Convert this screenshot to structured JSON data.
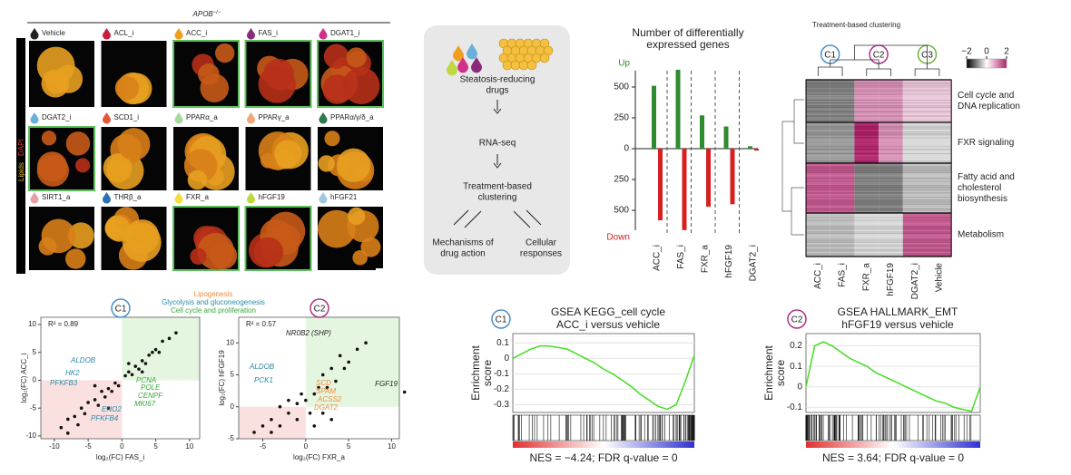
{
  "panel_a": {
    "header": "APOB",
    "header_sup": "−/−",
    "side_label_1": "Lipids",
    "side_label_2": "DAPI",
    "conditions": [
      {
        "label": "Vehicle",
        "color": "#222222",
        "highlighted": false
      },
      {
        "label": "ACL_i",
        "color": "#c8203c",
        "highlighted": false
      },
      {
        "label": "ACC_i",
        "color": "#f0a020",
        "highlighted": true
      },
      {
        "label": "FAS_i",
        "color": "#8a2a7a",
        "highlighted": true
      },
      {
        "label": "DGAT1_i",
        "color": "#d0308a",
        "highlighted": true
      },
      {
        "label": "DGAT2_i",
        "color": "#6ab0d8",
        "highlighted": true
      },
      {
        "label": "SCD1_i",
        "color": "#e05a3a",
        "highlighted": false
      },
      {
        "label": "PPARα_a",
        "color": "#a8d8a0",
        "highlighted": false
      },
      {
        "label": "PPARγ_a",
        "color": "#f0a878",
        "highlighted": false
      },
      {
        "label": "PPARα/γ/δ_a",
        "color": "#2a7a4a",
        "highlighted": false
      },
      {
        "label": "SIRT1_a",
        "color": "#e8a0a8",
        "highlighted": false
      },
      {
        "label": "THRβ_a",
        "color": "#2a70b0",
        "highlighted": false
      },
      {
        "label": "FXR_a",
        "color": "#f0e040",
        "highlighted": true
      },
      {
        "label": "hFGF19",
        "color": "#c0d840",
        "highlighted": true
      },
      {
        "label": "hFGF21",
        "color": "#a0c8e0",
        "highlighted": false
      }
    ]
  },
  "panel_b": {
    "steps": [
      [
        "Steatosis-reducing",
        "drugs"
      ],
      [
        "RNA-seq"
      ],
      [
        "Treatment-based",
        "clustering"
      ],
      [
        "Mechanisms of",
        "drug action"
      ],
      [
        "Cellular",
        "responses"
      ]
    ]
  },
  "chart_data": [
    {
      "type": "bar",
      "title": [
        "Number of differentially",
        "expressed genes"
      ],
      "categories": [
        "ACC_i",
        "FAS_i",
        "FXR_a",
        "hFGF19",
        "DGAT2_i"
      ],
      "series": [
        {
          "name": "Up",
          "color": "#2e8b2e",
          "values": [
            510,
            640,
            270,
            180,
            20
          ]
        },
        {
          "name": "Down",
          "color": "#d62020",
          "values": [
            -580,
            -660,
            -470,
            -450,
            -15
          ]
        }
      ],
      "ylim": [
        -720,
        691
      ],
      "yticks": [
        500,
        250,
        0,
        {
          "value": -250,
          "label": "250"
        },
        {
          "value": -500,
          "label": "500"
        }
      ]
    },
    {
      "type": "heatmap",
      "title": "Treatment-based clustering",
      "columns": [
        "ACC_i",
        "FAS_i",
        "FXR_a",
        "hFGF19",
        "DGAT2_i",
        "Vehicle"
      ],
      "clusters": [
        {
          "label": "C1",
          "color": "#4a90c8"
        },
        {
          "label": "C2",
          "color": "#b0308a"
        },
        {
          "label": "C3",
          "color": "#70b040"
        }
      ],
      "rows": [
        [
          "Cell cycle and",
          "DNA replication"
        ],
        [
          "FXR signaling"
        ],
        [
          "Fatty acid and",
          "cholesterol",
          "biosynthesis"
        ],
        [
          "Metabolism"
        ]
      ],
      "values": [
        [
          -1,
          -1,
          1,
          1,
          0.5,
          0.5
        ],
        [
          -0.8,
          -0.8,
          2,
          1,
          -0.3,
          -0.3
        ],
        [
          1.5,
          1.5,
          -1,
          -1,
          -0.5,
          -0.5
        ],
        [
          -0.5,
          -0.5,
          -0.3,
          -0.3,
          1.5,
          1.5
        ]
      ],
      "zlim": [
        -2,
        2
      ],
      "zticks": [
        {
          "value": -2,
          "label": "−2"
        },
        0,
        2
      ]
    },
    {
      "type": "scatter",
      "cluster": "C1",
      "cluster_color": "#4a90c8",
      "annotation": "R² = 0.89",
      "xlabel": "log₂(FC) FAS_i",
      "ylabel": "log₂(FC) ACC_i",
      "x": [
        -9,
        -8,
        -7,
        -6,
        -5.5,
        -5,
        -4,
        -3.5,
        -3,
        -2.5,
        -2,
        -1.5,
        -1,
        -0.5,
        0.5,
        1,
        1.5,
        2,
        2.5,
        3,
        3.5,
        4,
        4.5,
        5,
        5.5,
        6,
        7,
        8,
        -6.5,
        -8,
        -2,
        1,
        3,
        -4
      ],
      "y": [
        -8.5,
        -7,
        -6.5,
        -5,
        -6,
        -4,
        -3.5,
        -4.5,
        -2,
        -3,
        -1.5,
        -2,
        -0.5,
        -1,
        0.8,
        1.5,
        1,
        2.5,
        2,
        3.5,
        3,
        4.5,
        5,
        5.5,
        5,
        7,
        7.5,
        8.5,
        -8,
        -9.5,
        -5,
        3,
        1.5,
        -1
      ],
      "xlim": [
        -12,
        11.5
      ],
      "xticks": [
        -10,
        -5,
        0,
        5,
        10
      ],
      "ylim": [
        -10.5,
        11.3
      ],
      "yticks": [
        10,
        5,
        0,
        -5,
        -10
      ],
      "genes": [
        {
          "label": "ALDOB",
          "group": "glyco"
        },
        {
          "label": "HK2",
          "group": "glyco"
        },
        {
          "label": "PFKFB3",
          "group": "glyco"
        },
        {
          "label": "ENO2",
          "group": "glyco"
        },
        {
          "label": "PFKFB4",
          "group": "glyco"
        },
        {
          "label": "PCNA",
          "group": "cell"
        },
        {
          "label": "POLE",
          "group": "cell"
        },
        {
          "label": "CENPF",
          "group": "cell"
        },
        {
          "label": "MKI67",
          "group": "cell"
        }
      ]
    },
    {
      "type": "scatter",
      "cluster": "C2",
      "cluster_color": "#b0308a",
      "annotation": "R² = 0.57",
      "xlabel": "log₂(FC) FXR_a",
      "ylabel": "log₂(FC) hFGF19",
      "x": [
        -6,
        -5,
        -4,
        -3,
        -3,
        -2,
        -2,
        -1,
        -1,
        -0.5,
        0,
        0.5,
        1,
        1.5,
        2,
        2.5,
        3,
        3.5,
        4,
        4.5,
        5,
        6,
        7,
        2,
        3,
        1,
        -4,
        11.5
      ],
      "y": [
        -4,
        -3,
        -2,
        -3,
        0,
        -1,
        1,
        -2,
        0.5,
        2,
        1,
        -1,
        2,
        3,
        5,
        3,
        6,
        4,
        8,
        6,
        7,
        9,
        10,
        -1,
        -2,
        -3,
        -4,
        2.3
      ],
      "xlim": [
        -7.8,
        10.9
      ],
      "xticks": [
        -5,
        0,
        5,
        10
      ],
      "ylim": [
        -5,
        14
      ],
      "yticks": [
        10,
        5,
        0,
        -5
      ],
      "genes": [
        {
          "label": "NR0B2 (SHP)",
          "group": "other"
        },
        {
          "label": "ALDOB",
          "group": "glyco"
        },
        {
          "label": "PCK1",
          "group": "glyco"
        },
        {
          "label": "SCD",
          "group": "lipo"
        },
        {
          "label": "SPAM",
          "group": "lipo"
        },
        {
          "label": "ACSS2",
          "group": "lipo"
        },
        {
          "label": "DGAT2",
          "group": "lipo"
        },
        {
          "label": "FGF19",
          "group": "other"
        }
      ]
    },
    {
      "type": "line",
      "cluster": "C1",
      "cluster_color": "#4a90c8",
      "title": [
        "GSEA KEGG_cell cycle",
        "ACC_i versus vehicle"
      ],
      "ylabel": [
        "Enrichment",
        "score"
      ],
      "color": "#44dd22",
      "x": [
        0,
        0.05,
        0.1,
        0.15,
        0.2,
        0.25,
        0.3,
        0.35,
        0.4,
        0.45,
        0.5,
        0.55,
        0.6,
        0.65,
        0.7,
        0.75,
        0.8,
        0.85,
        0.9,
        0.95,
        1
      ],
      "values": [
        0,
        0.03,
        0.06,
        0.08,
        0.08,
        0.07,
        0.06,
        0.03,
        0,
        -0.03,
        -0.07,
        -0.1,
        -0.14,
        -0.18,
        -0.23,
        -0.27,
        -0.31,
        -0.33,
        -0.3,
        -0.15,
        0.02
      ],
      "xlim": [
        0,
        1
      ],
      "ylim": [
        -0.35,
        0.16
      ],
      "yticks": [
        0.1,
        0,
        -0.1,
        -0.2,
        -0.3
      ],
      "footer": "NES = −4.24; FDR q-value = 0"
    },
    {
      "type": "line",
      "cluster": "C2",
      "cluster_color": "#b0308a",
      "title": [
        "GSEA HALLMARK_EMT",
        "hFGF19 versus vehicle"
      ],
      "ylabel": [
        "Enrichment",
        "score"
      ],
      "color": "#44dd22",
      "x": [
        0,
        0.05,
        0.1,
        0.15,
        0.2,
        0.25,
        0.3,
        0.35,
        0.4,
        0.45,
        0.5,
        0.55,
        0.6,
        0.65,
        0.7,
        0.75,
        0.8,
        0.85,
        0.9,
        0.95,
        1
      ],
      "values": [
        0,
        0.2,
        0.22,
        0.2,
        0.17,
        0.14,
        0.12,
        0.1,
        0.07,
        0.05,
        0.03,
        0.01,
        -0.01,
        -0.03,
        -0.05,
        -0.07,
        -0.08,
        -0.1,
        -0.11,
        -0.12,
        0
      ],
      "xlim": [
        0,
        1
      ],
      "ylim": [
        -0.125,
        0.26
      ],
      "yticks": [
        0.2,
        0.1,
        0,
        -0.1
      ],
      "footer": "NES = 3.64; FDR q-value = 0"
    }
  ],
  "panel_e": {
    "legend": [
      {
        "label": "Lipogenesis",
        "color": "#f08a3a"
      },
      {
        "label": "Glycolysis and gluconeogenesis",
        "color": "#2a8aa8"
      },
      {
        "label": "Cell cycle and proliferation",
        "color": "#3aa83a"
      }
    ]
  }
}
